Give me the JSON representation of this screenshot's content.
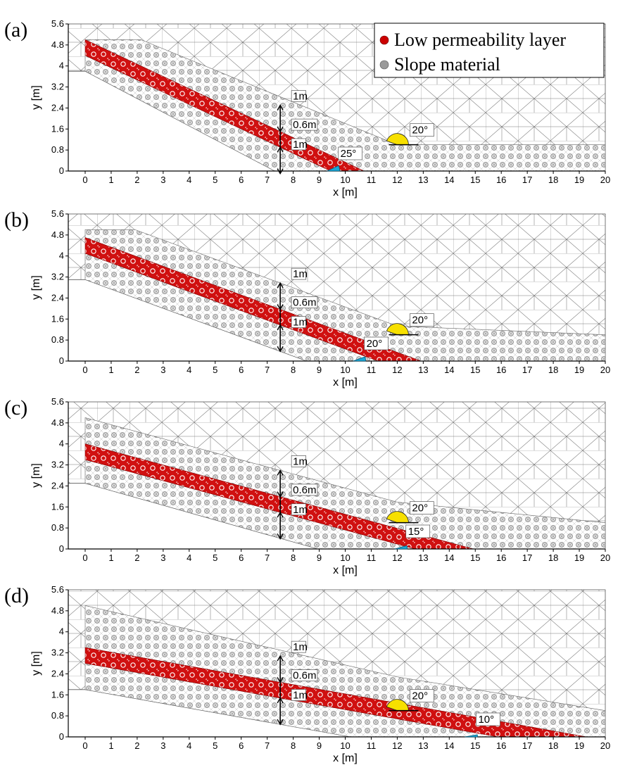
{
  "legend": {
    "items": [
      {
        "label": "Low permeability layer",
        "color": "#cc0000"
      },
      {
        "label": "Slope material",
        "color": "#999999"
      }
    ]
  },
  "axes": {
    "xlabel": "x [m]",
    "ylabel": "y [m]",
    "x_range": [
      0,
      20
    ],
    "y_range": [
      0,
      5.6
    ],
    "x_ticks": [
      "0",
      "1",
      "2",
      "3",
      "4",
      "5",
      "6",
      "7",
      "8",
      "9",
      "10",
      "11",
      "12",
      "13",
      "14",
      "15",
      "16",
      "17",
      "18",
      "19",
      "20"
    ],
    "y_ticks": [
      "0",
      "0.8",
      "1.6",
      "2.4",
      "3.2",
      "4",
      "4.8",
      "5.6"
    ]
  },
  "dimension_x": 7.5,
  "dimension_labels": [
    "1m",
    "0.6m",
    "1m"
  ],
  "colors": {
    "layer": "#cc0000",
    "slope": "#888888",
    "mesh": "#777777",
    "top_angle": "#f7e000",
    "bottom_angle": "#1aa8d8"
  },
  "panels": [
    {
      "letter": "(a)",
      "top_angle_label": "20°",
      "bottom_angle_label": "25°",
      "layer_angle": 25,
      "layer_toe_x": 9.3,
      "layer_top_y": 5.0,
      "left_base_y": 3.8,
      "top_angle_x": 12.0,
      "top_angle_y": 1.0
    },
    {
      "letter": "(b)",
      "top_angle_label": "20°",
      "bottom_angle_label": "20°",
      "layer_angle": 20,
      "layer_toe_x": 10.3,
      "layer_top_y": 4.7,
      "left_base_y": 3.1,
      "top_angle_x": 12.0,
      "top_angle_y": 1.0
    },
    {
      "letter": "(c)",
      "top_angle_label": "20°",
      "bottom_angle_label": "15°",
      "layer_angle": 15,
      "layer_toe_x": 11.9,
      "layer_top_y": 4.0,
      "left_base_y": 2.5,
      "top_angle_x": 12.0,
      "top_angle_y": 1.0
    },
    {
      "letter": "(d)",
      "top_angle_label": "20°",
      "bottom_angle_label": "10°",
      "layer_angle": 10,
      "layer_toe_x": 14.6,
      "layer_top_y": 3.4,
      "left_base_y": 1.8,
      "top_angle_x": 12.0,
      "top_angle_y": 1.0
    }
  ]
}
